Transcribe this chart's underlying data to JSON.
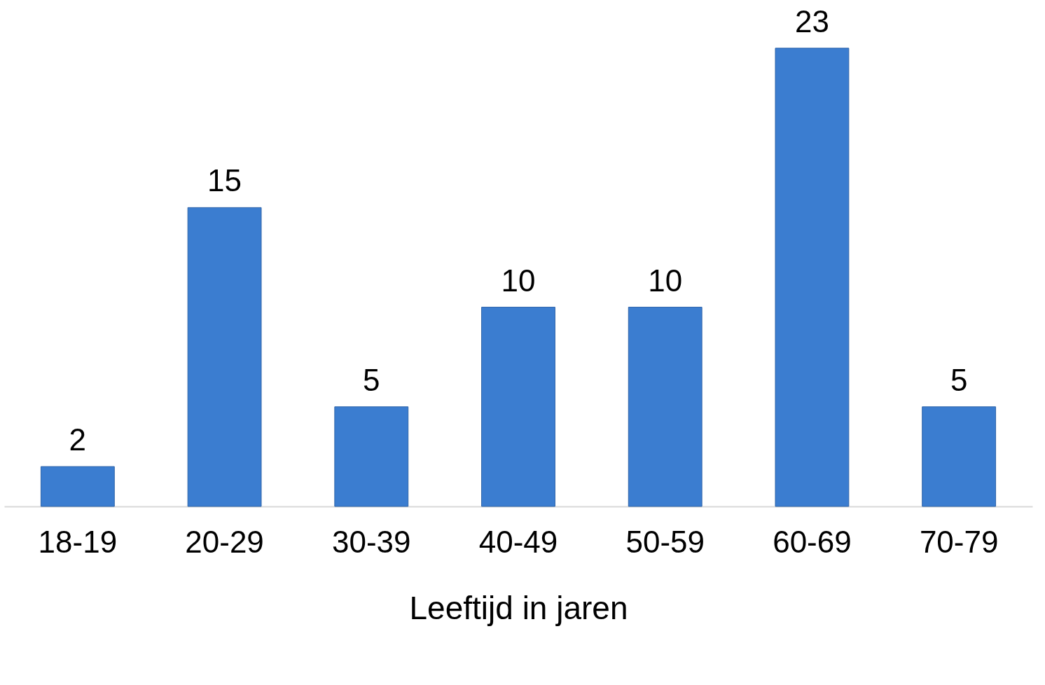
{
  "chart_data": {
    "type": "bar",
    "xlabel": "Leeftijd in jaren",
    "categories": [
      "18-19",
      "20-29",
      "30-39",
      "40-49",
      "50-59",
      "60-69",
      "70-79"
    ],
    "values": [
      2,
      15,
      5,
      10,
      10,
      23,
      5
    ],
    "color": "#3b7dd0",
    "data_labels": true,
    "grid": false
  }
}
